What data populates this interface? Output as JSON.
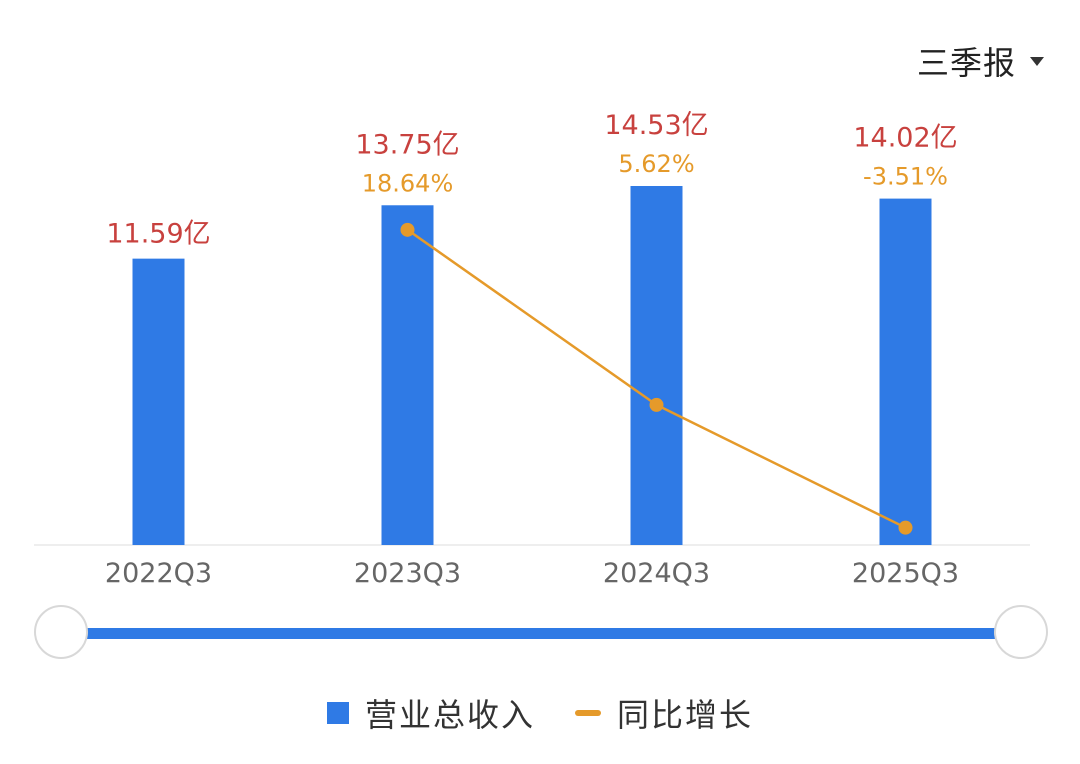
{
  "period_selector": {
    "label": "三季报"
  },
  "legend": {
    "bar_label": "营业总收入",
    "line_label": "同比增长"
  },
  "colors": {
    "bar": "#2f7ae5",
    "line": "#e59a2a",
    "value_label": "#c8413e",
    "axis_text": "#666666",
    "axis_line": "#eeeeee"
  },
  "chart_data": {
    "type": "bar",
    "categories": [
      "2022Q3",
      "2023Q3",
      "2024Q3",
      "2025Q3"
    ],
    "series": [
      {
        "name": "营业总收入",
        "type": "bar",
        "values": [
          11.59,
          13.75,
          14.53,
          14.02
        ],
        "labels": [
          "11.59亿",
          "13.75亿",
          "14.53亿",
          "14.02亿"
        ]
      },
      {
        "name": "同比增长",
        "type": "line",
        "values": [
          null,
          18.64,
          5.62,
          -3.51
        ],
        "labels": [
          "",
          "18.64%",
          "5.62%",
          "-3.51%"
        ]
      }
    ],
    "ylim_bar": [
      0,
      14.53
    ],
    "ylim_line": [
      -4.8,
      21.9
    ],
    "xlabel": "",
    "ylabel": ""
  }
}
